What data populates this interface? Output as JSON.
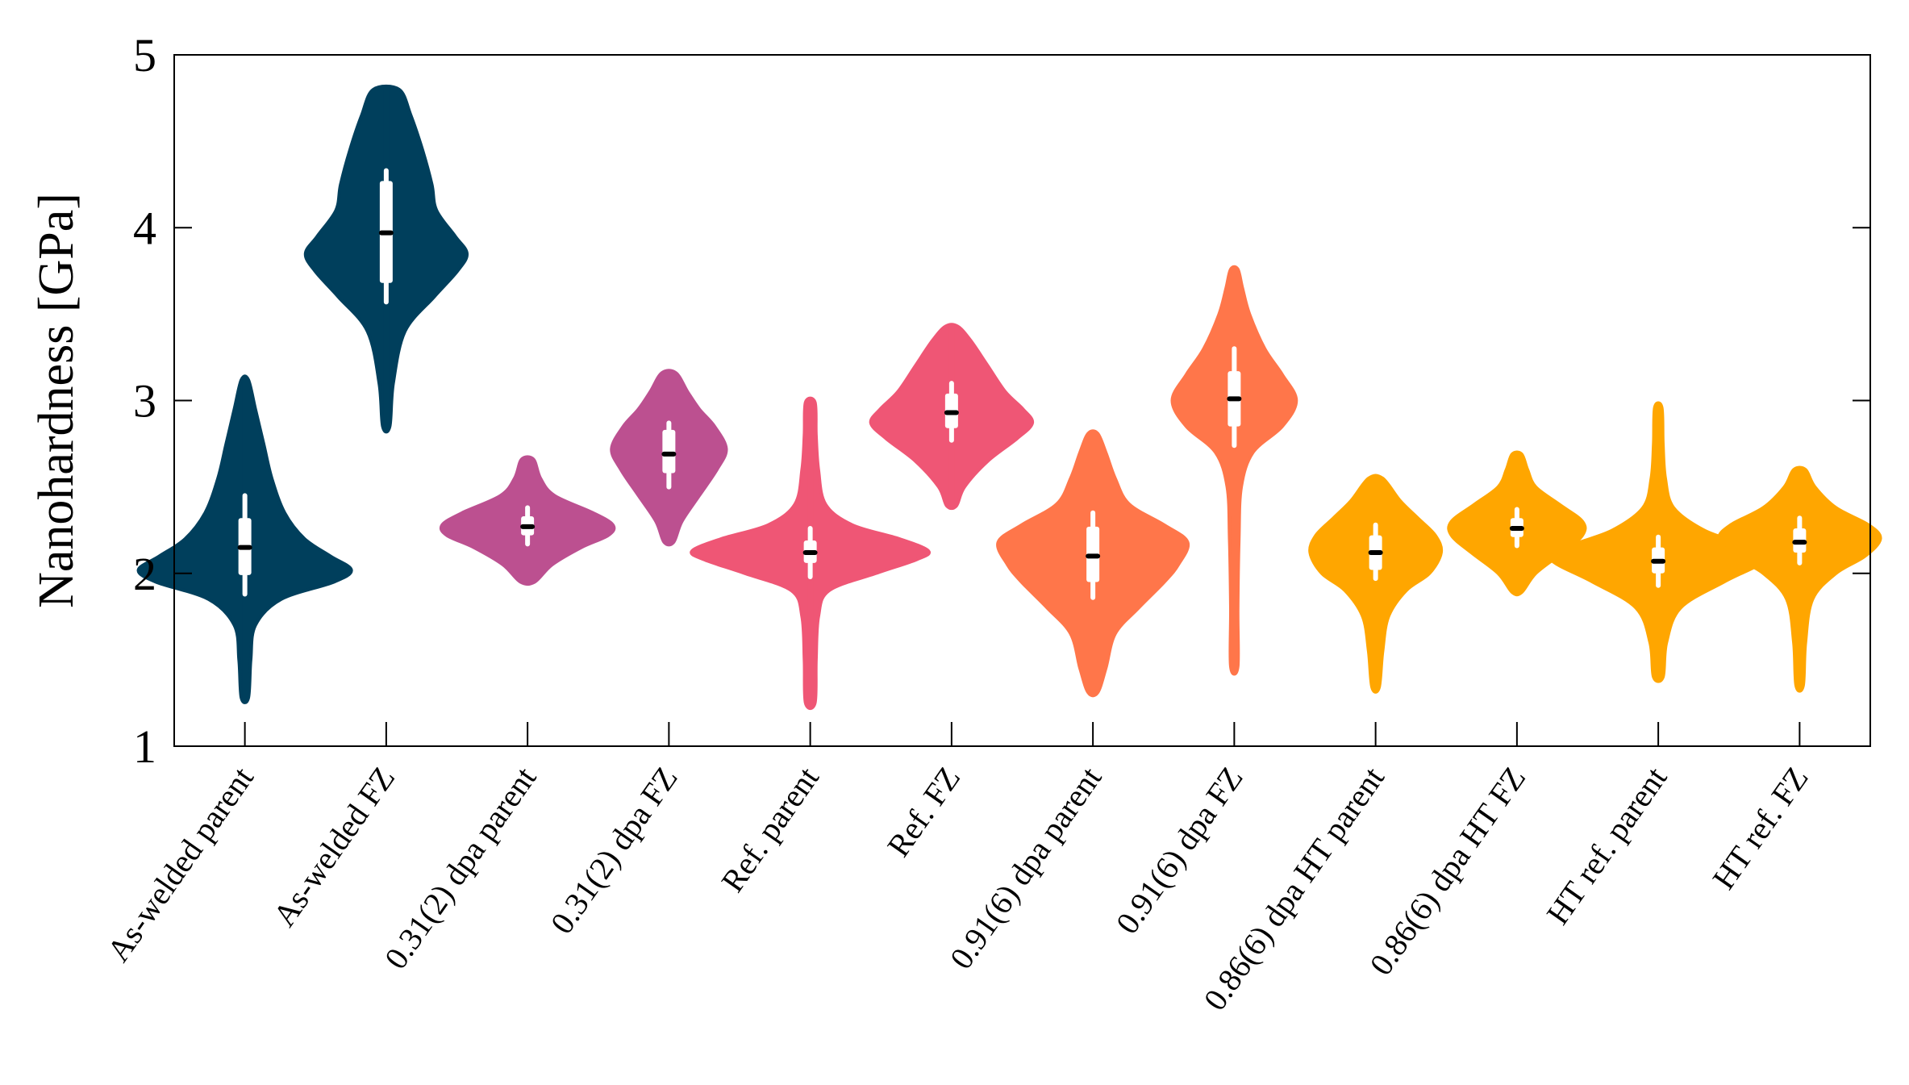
{
  "chart_data": {
    "type": "violin",
    "title": "",
    "xlabel": "",
    "ylabel": "Nanohardness [GPa]",
    "ylim": [
      1,
      5
    ],
    "yticks": [
      1,
      2,
      3,
      4,
      5
    ],
    "grid": false,
    "categories": [
      "As-welded parent",
      "As-welded FZ",
      "0.31(2) dpa parent",
      "0.31(2) dpa FZ",
      "Ref. parent",
      "Ref. FZ",
      "0.91(6) dpa parent",
      "0.91(6) dpa FZ",
      "0.86(6) dpa HT parent",
      "0.86(6) dpa HT FZ",
      "HT ref. parent",
      "HT ref. FZ"
    ],
    "series": [
      {
        "category": "As-welded parent",
        "color": "#003f5c",
        "min": 1.28,
        "max": 3.12,
        "median": 2.15,
        "q1": 1.99,
        "q3": 2.32,
        "whisker_low": 1.88,
        "whisker_high": 2.45,
        "profile": [
          [
            1.28,
            0.02
          ],
          [
            1.5,
            0.04
          ],
          [
            1.7,
            0.08
          ],
          [
            1.85,
            0.3
          ],
          [
            1.95,
            0.75
          ],
          [
            2.02,
            0.9
          ],
          [
            2.1,
            0.72
          ],
          [
            2.2,
            0.5
          ],
          [
            2.35,
            0.33
          ],
          [
            2.55,
            0.22
          ],
          [
            2.75,
            0.15
          ],
          [
            2.95,
            0.08
          ],
          [
            3.12,
            0.02
          ]
        ]
      },
      {
        "category": "As-welded FZ",
        "color": "#003f5c",
        "min": 2.85,
        "max": 4.8,
        "median": 3.97,
        "q1": 3.68,
        "q3": 4.27,
        "whisker_low": 3.57,
        "whisker_high": 4.33,
        "profile": [
          [
            2.85,
            0.02
          ],
          [
            3.1,
            0.05
          ],
          [
            3.4,
            0.15
          ],
          [
            3.6,
            0.4
          ],
          [
            3.75,
            0.6
          ],
          [
            3.85,
            0.68
          ],
          [
            3.95,
            0.58
          ],
          [
            4.1,
            0.42
          ],
          [
            4.25,
            0.38
          ],
          [
            4.45,
            0.3
          ],
          [
            4.65,
            0.2
          ],
          [
            4.8,
            0.1
          ]
        ]
      },
      {
        "category": "0.31(2) dpa parent",
        "color": "#bc5090",
        "min": 1.95,
        "max": 2.66,
        "median": 2.27,
        "q1": 2.22,
        "q3": 2.33,
        "whisker_low": 2.17,
        "whisker_high": 2.38,
        "profile": [
          [
            1.95,
            0.05
          ],
          [
            2.05,
            0.2
          ],
          [
            2.15,
            0.45
          ],
          [
            2.22,
            0.68
          ],
          [
            2.28,
            0.72
          ],
          [
            2.35,
            0.55
          ],
          [
            2.45,
            0.22
          ],
          [
            2.55,
            0.1
          ],
          [
            2.66,
            0.04
          ]
        ]
      },
      {
        "category": "0.31(2) dpa FZ",
        "color": "#bc5090",
        "min": 2.18,
        "max": 3.16,
        "median": 2.69,
        "q1": 2.58,
        "q3": 2.83,
        "whisker_low": 2.5,
        "whisker_high": 2.87,
        "profile": [
          [
            2.18,
            0.03
          ],
          [
            2.3,
            0.1
          ],
          [
            2.45,
            0.25
          ],
          [
            2.6,
            0.4
          ],
          [
            2.72,
            0.48
          ],
          [
            2.85,
            0.38
          ],
          [
            2.95,
            0.25
          ],
          [
            3.05,
            0.15
          ],
          [
            3.16,
            0.05
          ]
        ]
      },
      {
        "category": "Ref. parent",
        "color": "#ef5675",
        "min": 1.25,
        "max": 2.99,
        "median": 2.12,
        "q1": 2.06,
        "q3": 2.19,
        "whisker_low": 1.98,
        "whisker_high": 2.26,
        "profile": [
          [
            1.25,
            0.03
          ],
          [
            1.5,
            0.04
          ],
          [
            1.75,
            0.06
          ],
          [
            1.9,
            0.15
          ],
          [
            2.0,
            0.55
          ],
          [
            2.08,
            0.9
          ],
          [
            2.13,
            1.0
          ],
          [
            2.2,
            0.75
          ],
          [
            2.28,
            0.35
          ],
          [
            2.4,
            0.12
          ],
          [
            2.6,
            0.06
          ],
          [
            2.8,
            0.04
          ],
          [
            2.99,
            0.03
          ]
        ]
      },
      {
        "category": "Ref. FZ",
        "color": "#ef5675",
        "min": 2.39,
        "max": 3.43,
        "median": 2.93,
        "q1": 2.84,
        "q3": 3.04,
        "whisker_low": 2.77,
        "whisker_high": 3.1,
        "profile": [
          [
            2.39,
            0.03
          ],
          [
            2.5,
            0.1
          ],
          [
            2.65,
            0.3
          ],
          [
            2.78,
            0.55
          ],
          [
            2.87,
            0.68
          ],
          [
            2.95,
            0.6
          ],
          [
            3.05,
            0.45
          ],
          [
            3.2,
            0.3
          ],
          [
            3.35,
            0.15
          ],
          [
            3.43,
            0.04
          ]
        ]
      },
      {
        "category": "0.91(6) dpa parent",
        "color": "#ff764a",
        "min": 1.31,
        "max": 2.81,
        "median": 2.1,
        "q1": 1.95,
        "q3": 2.27,
        "whisker_low": 1.86,
        "whisker_high": 2.35,
        "profile": [
          [
            1.31,
            0.03
          ],
          [
            1.45,
            0.1
          ],
          [
            1.65,
            0.18
          ],
          [
            1.8,
            0.38
          ],
          [
            1.95,
            0.6
          ],
          [
            2.05,
            0.72
          ],
          [
            2.18,
            0.8
          ],
          [
            2.28,
            0.6
          ],
          [
            2.4,
            0.3
          ],
          [
            2.55,
            0.18
          ],
          [
            2.7,
            0.1
          ],
          [
            2.81,
            0.03
          ]
        ]
      },
      {
        "category": "0.91(6) dpa FZ",
        "color": "#ff764a",
        "min": 1.46,
        "max": 3.76,
        "median": 3.01,
        "q1": 2.85,
        "q3": 3.17,
        "whisker_low": 2.74,
        "whisker_high": 3.3,
        "profile": [
          [
            1.46,
            0.02
          ],
          [
            1.8,
            0.02
          ],
          [
            2.2,
            0.03
          ],
          [
            2.5,
            0.05
          ],
          [
            2.7,
            0.15
          ],
          [
            2.85,
            0.4
          ],
          [
            3.0,
            0.52
          ],
          [
            3.15,
            0.4
          ],
          [
            3.3,
            0.25
          ],
          [
            3.5,
            0.12
          ],
          [
            3.65,
            0.06
          ],
          [
            3.76,
            0.02
          ]
        ]
      },
      {
        "category": "0.86(6) dpa HT parent",
        "color": "#ffa600",
        "min": 1.34,
        "max": 2.55,
        "median": 2.12,
        "q1": 2.02,
        "q3": 2.22,
        "whisker_low": 1.97,
        "whisker_high": 2.28,
        "profile": [
          [
            1.34,
            0.02
          ],
          [
            1.55,
            0.05
          ],
          [
            1.75,
            0.1
          ],
          [
            1.9,
            0.25
          ],
          [
            2.0,
            0.45
          ],
          [
            2.12,
            0.55
          ],
          [
            2.22,
            0.5
          ],
          [
            2.32,
            0.35
          ],
          [
            2.42,
            0.2
          ],
          [
            2.55,
            0.05
          ]
        ]
      },
      {
        "category": "0.86(6) dpa HT FZ",
        "color": "#ffa600",
        "min": 1.89,
        "max": 2.69,
        "median": 2.26,
        "q1": 2.21,
        "q3": 2.32,
        "whisker_low": 2.16,
        "whisker_high": 2.37,
        "profile": [
          [
            1.89,
            0.03
          ],
          [
            2.0,
            0.15
          ],
          [
            2.12,
            0.38
          ],
          [
            2.22,
            0.55
          ],
          [
            2.3,
            0.55
          ],
          [
            2.4,
            0.35
          ],
          [
            2.5,
            0.15
          ],
          [
            2.6,
            0.08
          ],
          [
            2.69,
            0.03
          ]
        ]
      },
      {
        "category": "HT ref. parent",
        "color": "#ffa600",
        "min": 1.4,
        "max": 2.96,
        "median": 2.07,
        "q1": 2.0,
        "q3": 2.15,
        "whisker_low": 1.93,
        "whisker_high": 2.21,
        "profile": [
          [
            1.4,
            0.03
          ],
          [
            1.6,
            0.06
          ],
          [
            1.8,
            0.18
          ],
          [
            1.95,
            0.55
          ],
          [
            2.05,
            0.85
          ],
          [
            2.1,
            0.9
          ],
          [
            2.17,
            0.7
          ],
          [
            2.25,
            0.38
          ],
          [
            2.38,
            0.12
          ],
          [
            2.55,
            0.05
          ],
          [
            2.75,
            0.03
          ],
          [
            2.96,
            0.02
          ]
        ]
      },
      {
        "category": "HT ref. FZ",
        "color": "#ffa600",
        "min": 1.35,
        "max": 2.6,
        "median": 2.18,
        "q1": 2.12,
        "q3": 2.26,
        "whisker_low": 2.06,
        "whisker_high": 2.32,
        "profile": [
          [
            1.35,
            0.02
          ],
          [
            1.6,
            0.04
          ],
          [
            1.85,
            0.1
          ],
          [
            2.0,
            0.3
          ],
          [
            2.1,
            0.55
          ],
          [
            2.2,
            0.68
          ],
          [
            2.28,
            0.58
          ],
          [
            2.38,
            0.3
          ],
          [
            2.5,
            0.12
          ],
          [
            2.6,
            0.04
          ]
        ]
      }
    ]
  }
}
